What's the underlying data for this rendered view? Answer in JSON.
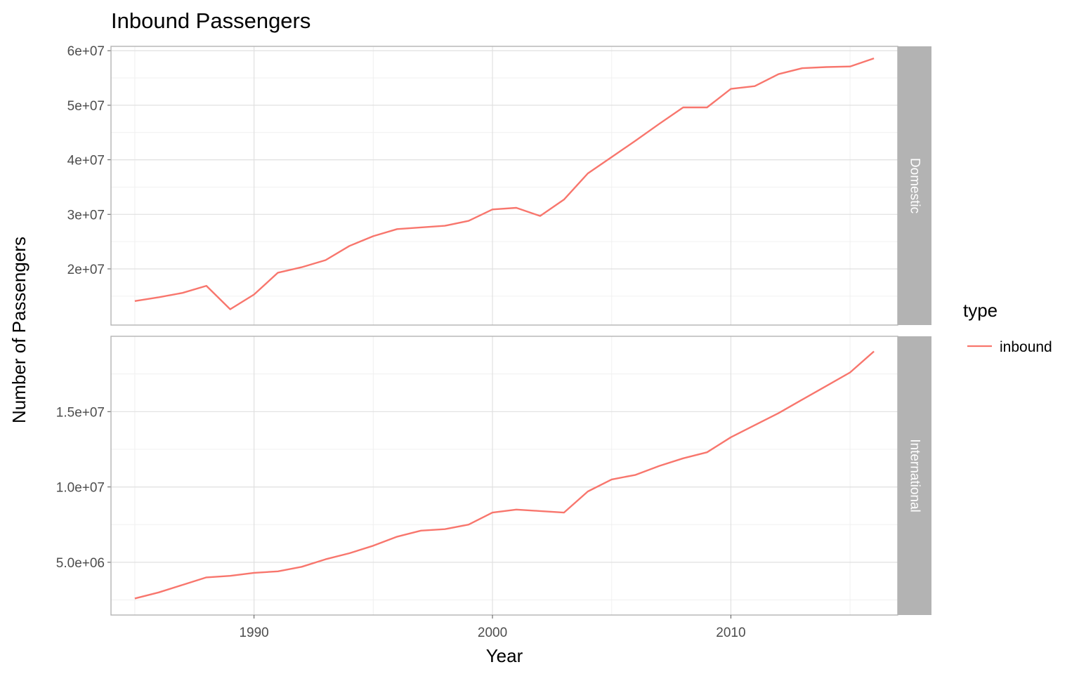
{
  "chart_data": {
    "type": "line",
    "title": "Inbound Passengers",
    "xlabel": "Year",
    "ylabel": "Number of Passengers",
    "grid": true,
    "legend": {
      "title": "type",
      "position": "right",
      "entries": [
        {
          "label": "inbound",
          "color": "#F8766D"
        }
      ]
    },
    "x_ticks": [
      "1990",
      "2000",
      "2010"
    ],
    "xlim": [
      1984,
      2017
    ],
    "panels": [
      {
        "strip_label": "Domestic",
        "ylim": [
          9700000,
          60800000
        ],
        "y_ticks": [
          {
            "value": 20000000,
            "label": "2e+07"
          },
          {
            "value": 30000000,
            "label": "3e+07"
          },
          {
            "value": 40000000,
            "label": "4e+07"
          },
          {
            "value": 50000000,
            "label": "5e+07"
          },
          {
            "value": 60000000,
            "label": "6e+07"
          }
        ],
        "series": [
          {
            "name": "inbound",
            "x": [
              1985,
              1986,
              1987,
              1988,
              1989,
              1990,
              1991,
              1992,
              1993,
              1994,
              1995,
              1996,
              1997,
              1998,
              1999,
              2000,
              2001,
              2002,
              2003,
              2004,
              2005,
              2006,
              2007,
              2008,
              2009,
              2010,
              2011,
              2012,
              2013,
              2014,
              2015,
              2016
            ],
            "values": [
              14100000,
              14800000,
              15600000,
              16900000,
              12600000,
              15300000,
              19300000,
              20300000,
              21600000,
              24200000,
              26000000,
              27300000,
              27600000,
              27900000,
              28800000,
              30900000,
              31200000,
              29700000,
              32700000,
              37500000,
              40500000,
              43500000,
              46600000,
              49600000,
              49600000,
              53000000,
              53500000,
              55700000,
              56800000,
              57000000,
              57100000,
              58600000
            ]
          }
        ]
      },
      {
        "strip_label": "International",
        "ylim": [
          1500000,
          20000000
        ],
        "y_ticks": [
          {
            "value": 5000000,
            "label": "5.0e+06"
          },
          {
            "value": 10000000,
            "label": "1.0e+07"
          },
          {
            "value": 15000000,
            "label": "1.5e+07"
          }
        ],
        "series": [
          {
            "name": "inbound",
            "x": [
              1985,
              1986,
              1987,
              1988,
              1989,
              1990,
              1991,
              1992,
              1993,
              1994,
              1995,
              1996,
              1997,
              1998,
              1999,
              2000,
              2001,
              2002,
              2003,
              2004,
              2005,
              2006,
              2007,
              2008,
              2009,
              2010,
              2011,
              2012,
              2013,
              2014,
              2015,
              2016
            ],
            "values": [
              2600000,
              3000000,
              3500000,
              4000000,
              4100000,
              4300000,
              4400000,
              4700000,
              5200000,
              5600000,
              6100000,
              6700000,
              7100000,
              7200000,
              7500000,
              8300000,
              8500000,
              8400000,
              8300000,
              9700000,
              10500000,
              10800000,
              11400000,
              11900000,
              12300000,
              13300000,
              14100000,
              14900000,
              15800000,
              16700000,
              17600000,
              19000000
            ]
          }
        ]
      }
    ]
  }
}
